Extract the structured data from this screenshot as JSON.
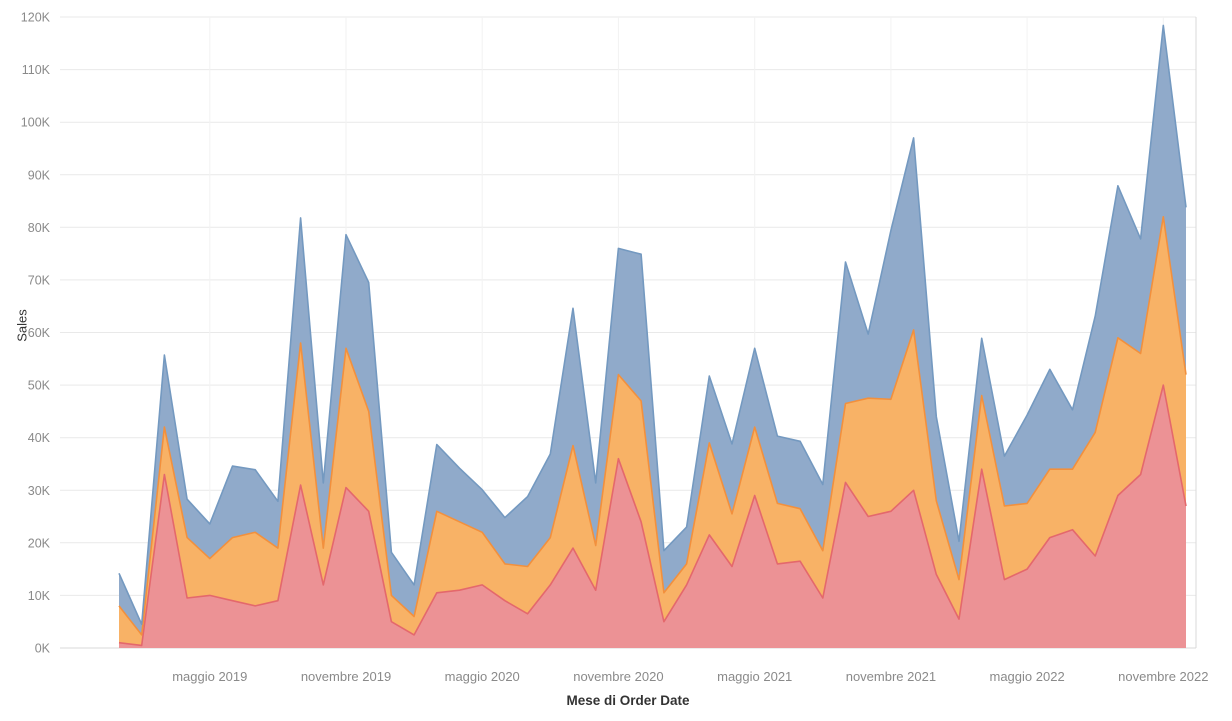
{
  "chart_data": {
    "type": "area",
    "stacked": true,
    "title": "",
    "ylabel": "Sales",
    "xlabel": "Mese di Order Date",
    "unit": "K (thousands of sales)",
    "ylim_k": [
      0,
      120
    ],
    "n_points": 48,
    "x_extent": [
      "gennaio 2019",
      "dicembre 2022"
    ],
    "grid": true,
    "legend": "none visible",
    "colors": {
      "background": "#ffffff",
      "grid_h": "#e9e9e9",
      "grid_v": "#f2f2f2",
      "axis_line": "#d9d9d9",
      "tick_text": "#8a8a8a",
      "axis_title_text": "#333333"
    },
    "y_ticks": [
      {
        "label": "0K",
        "value": 0
      },
      {
        "label": "10K",
        "value": 10
      },
      {
        "label": "20K",
        "value": 20
      },
      {
        "label": "30K",
        "value": 30
      },
      {
        "label": "40K",
        "value": 40
      },
      {
        "label": "50K",
        "value": 50
      },
      {
        "label": "60K",
        "value": 60
      },
      {
        "label": "70K",
        "value": 70
      },
      {
        "label": "80K",
        "value": 80
      },
      {
        "label": "90K",
        "value": 90
      },
      {
        "label": "100K",
        "value": 100
      },
      {
        "label": "110K",
        "value": 110
      },
      {
        "label": "120K",
        "value": 120
      }
    ],
    "x_ticks": [
      {
        "label": "maggio 2019",
        "index": 4
      },
      {
        "label": "novembre 2019",
        "index": 10
      },
      {
        "label": "maggio 2020",
        "index": 16
      },
      {
        "label": "novembre 2020",
        "index": 22
      },
      {
        "label": "maggio 2021",
        "index": 28
      },
      {
        "label": "novembre 2021",
        "index": 34
      },
      {
        "label": "maggio 2022",
        "index": 40
      },
      {
        "label": "novembre 2022",
        "index": 46
      }
    ],
    "series_note": "band heights in K, stacked bottom-to-top; monthly values gennaio 2019 - dicembre 2022",
    "series": [
      {
        "name": "red-bottom-band",
        "fill": "#EC9295",
        "stroke": "#E4686C",
        "values": [
          1,
          0.5,
          33,
          9.5,
          10,
          9,
          8,
          9,
          31,
          12,
          30.5,
          26,
          5,
          2.5,
          10.5,
          11,
          12,
          9,
          6.5,
          12,
          19,
          11,
          36,
          24,
          5,
          12,
          21.5,
          15.5,
          29,
          16,
          16.5,
          9.5,
          31.5,
          25,
          26,
          30,
          14,
          5.5,
          34,
          13,
          15,
          21,
          22.5,
          17.5,
          29,
          33,
          50,
          27
        ]
      },
      {
        "name": "orange-middle-band",
        "fill": "#F8B266",
        "stroke": "#F2903D",
        "values": [
          7,
          2,
          9,
          11.5,
          7,
          12,
          14,
          10,
          27,
          7,
          26.5,
          19,
          5,
          3.5,
          15.5,
          13,
          10,
          7,
          9,
          9,
          19.5,
          8.5,
          16,
          23,
          5.5,
          4,
          17.5,
          10,
          13,
          11.5,
          10,
          9,
          15,
          22.5,
          21.3,
          30.5,
          14,
          7.5,
          14,
          14,
          12.5,
          13,
          11.5,
          23.5,
          30,
          23,
          32,
          25
        ]
      },
      {
        "name": "blue-top-band",
        "fill": "#90AACA",
        "stroke": "#7499C0",
        "values": [
          6.2,
          2,
          13.7,
          7.3,
          6.6,
          13.6,
          11.9,
          8.9,
          23.8,
          12.4,
          21.6,
          24.5,
          8.2,
          6,
          12.7,
          10.2,
          8.1,
          8.8,
          13.3,
          15.9,
          26.1,
          11.9,
          24,
          27.9,
          8,
          7,
          12.7,
          13.3,
          15,
          12.8,
          12.8,
          12.6,
          26.9,
          12.2,
          32.1,
          36.5,
          16,
          7.3,
          10.9,
          9.5,
          16.8,
          19,
          11.3,
          22.1,
          28.9,
          21.8,
          36.4,
          31.8
        ]
      }
    ]
  }
}
